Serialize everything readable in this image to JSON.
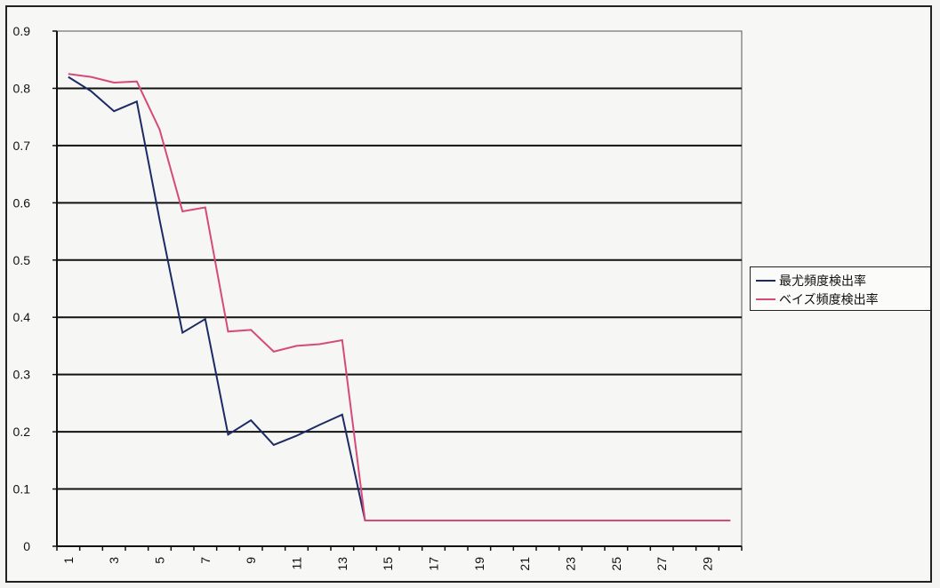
{
  "chart_data": {
    "type": "line",
    "title": "",
    "xlabel": "",
    "ylabel": "",
    "x": [
      1,
      2,
      3,
      4,
      5,
      6,
      7,
      8,
      9,
      10,
      11,
      12,
      13,
      14,
      15,
      16,
      17,
      18,
      19,
      20,
      21,
      22,
      23,
      24,
      25,
      26,
      27,
      28,
      29,
      30
    ],
    "x_tick_labels": [
      "1",
      "3",
      "5",
      "7",
      "9",
      "11",
      "13",
      "15",
      "17",
      "19",
      "21",
      "23",
      "25",
      "27",
      "29"
    ],
    "y_ticks": [
      "0",
      "0.1",
      "0.2",
      "0.3",
      "0.4",
      "0.5",
      "0.6",
      "0.7",
      "0.8",
      "0.9"
    ],
    "ylim": [
      0,
      0.9
    ],
    "grid": "horizontal major gridlines",
    "legend_position": "right",
    "series": [
      {
        "name": "最尤頻度検出率",
        "color": "#1c2a66",
        "values": [
          0.82,
          0.795,
          0.76,
          0.777,
          0.57,
          0.373,
          0.397,
          0.195,
          0.22,
          0.177,
          0.193,
          0.212,
          0.23,
          0.045,
          0.045,
          0.045,
          0.045,
          0.045,
          0.045,
          0.045,
          0.045,
          0.045,
          0.045,
          0.045,
          0.045,
          0.045,
          0.045,
          0.045,
          0.045,
          0.045
        ]
      },
      {
        "name": "ベイズ頻度検出率",
        "color": "#d64a7a",
        "values": [
          0.825,
          0.82,
          0.81,
          0.812,
          0.728,
          0.585,
          0.592,
          0.375,
          0.378,
          0.34,
          0.35,
          0.353,
          0.36,
          0.045,
          0.045,
          0.045,
          0.045,
          0.045,
          0.045,
          0.045,
          0.045,
          0.045,
          0.045,
          0.045,
          0.045,
          0.045,
          0.045,
          0.045,
          0.045,
          0.045
        ]
      }
    ]
  }
}
